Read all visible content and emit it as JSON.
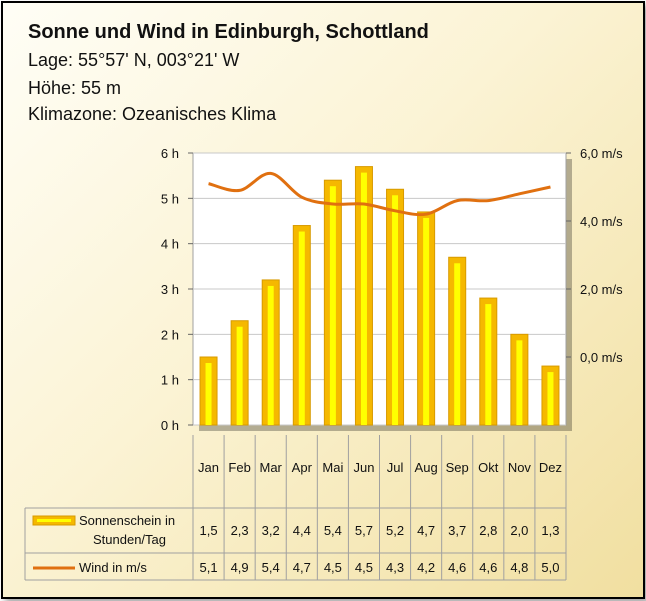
{
  "header": {
    "title": "Sonne und Wind in Edinburgh, Schottland",
    "lage": "Lage: 55°57' N, 003°21' W",
    "hoehe": "Höhe: 55 m",
    "klimazone": "Klimazone: Ozeanisches Klima"
  },
  "colors": {
    "bar_fill": "#f5b800",
    "bar_inner": "#ffff00",
    "line": "#e07010",
    "grid": "#c8c8c8"
  },
  "chart_data": {
    "type": "bar",
    "categories": [
      "Jan",
      "Feb",
      "Mar",
      "Apr",
      "Mai",
      "Jun",
      "Jul",
      "Aug",
      "Sep",
      "Okt",
      "Nov",
      "Dez"
    ],
    "y_left": {
      "ylim": [
        0,
        6
      ],
      "ticks": [
        "0 h",
        "1 h",
        "2 h",
        "3 h",
        "4 h",
        "5 h",
        "6 h"
      ]
    },
    "y_right": {
      "ylim": [
        -2,
        6
      ],
      "ticks": [
        "0,0 m/s",
        "2,0 m/s",
        "4,0 m/s",
        "6,0 m/s"
      ],
      "tick_values": [
        0,
        2,
        4,
        6
      ]
    },
    "series": [
      {
        "name": "Sonnenschein in Stunden/Tag",
        "type": "bar",
        "axis": "left",
        "values": [
          1.5,
          2.3,
          3.2,
          4.4,
          5.4,
          5.7,
          5.2,
          4.7,
          3.7,
          2.8,
          2.0,
          1.3
        ],
        "labels": [
          "1,5",
          "2,3",
          "3,2",
          "4,4",
          "5,4",
          "5,7",
          "5,2",
          "4,7",
          "3,7",
          "2,8",
          "2,0",
          "1,3"
        ]
      },
      {
        "name": "Wind in m/s",
        "type": "line",
        "axis": "right",
        "values": [
          5.1,
          4.9,
          5.4,
          4.7,
          4.5,
          4.5,
          4.3,
          4.2,
          4.6,
          4.6,
          4.8,
          5.0
        ],
        "labels": [
          "5,1",
          "4,9",
          "5,4",
          "4,7",
          "4,5",
          "4,5",
          "4,3",
          "4,2",
          "4,6",
          "4,6",
          "4,8",
          "5,0"
        ]
      }
    ],
    "table_legend": [
      {
        "line1": "Sonnenschein  in",
        "line2": "Stunden/Tag"
      },
      {
        "line1": "Wind in m/s"
      }
    ],
    "grid": true
  }
}
